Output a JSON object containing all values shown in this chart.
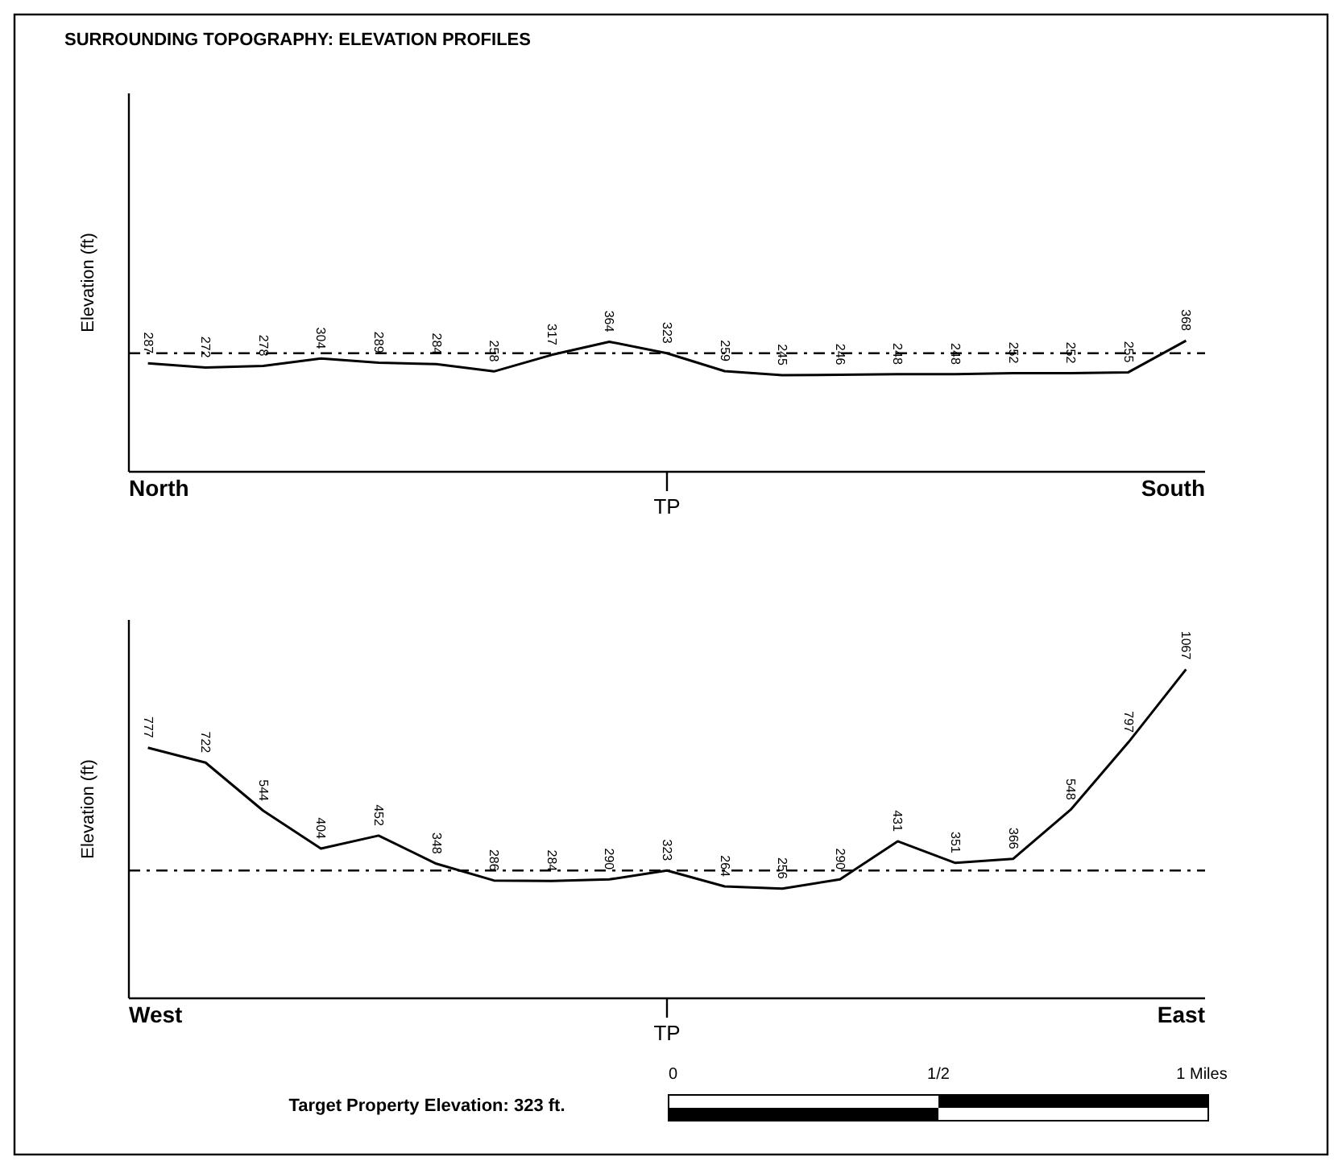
{
  "chart_data": [
    {
      "type": "line",
      "title": "SURROUNDING TOPOGRAPHY: ELEVATION PROFILES",
      "ylabel": "Elevation (ft)",
      "categories": [
        null,
        null,
        null,
        null,
        null,
        null,
        null,
        null,
        null,
        null,
        null,
        null,
        null,
        null,
        null,
        null,
        null,
        null,
        null
      ],
      "series": [
        {
          "color": "#000000",
          "values": [
            287,
            272,
            278,
            304,
            289,
            284,
            258,
            317,
            364,
            323,
            259,
            245,
            246,
            248,
            248,
            252,
            252,
            255,
            368
          ]
        }
      ],
      "data_labels": true,
      "ylim": [
        -100,
        1250
      ],
      "marker": "none",
      "line_style": "solid",
      "ref_lines": [
        {
          "axis": "y",
          "value": 323,
          "color": "#000000",
          "line_style": "dashdot"
        }
      ],
      "annotations": [
        "North",
        "TP",
        "South"
      ]
    },
    {
      "type": "line",
      "ylabel": "Elevation (ft)",
      "categories": [
        null,
        null,
        null,
        null,
        null,
        null,
        null,
        null,
        null,
        null,
        null,
        null,
        null,
        null,
        null,
        null,
        null,
        null,
        null
      ],
      "series": [
        {
          "color": "#000000",
          "values": [
            777,
            722,
            544,
            404,
            452,
            348,
            286,
            284,
            290,
            323,
            264,
            256,
            290,
            431,
            351,
            366,
            548,
            797,
            1067
          ]
        }
      ],
      "data_labels": true,
      "ylim": [
        -150,
        1250
      ],
      "marker": "none",
      "line_style": "solid",
      "ref_lines": [
        {
          "axis": "y",
          "value": 323,
          "color": "#000000",
          "line_style": "dashdot"
        }
      ],
      "annotations": [
        "West",
        "TP",
        "East",
        "Target Property Elevation: 323 ft.",
        "0",
        "1/2",
        "1 Miles"
      ]
    }
  ]
}
